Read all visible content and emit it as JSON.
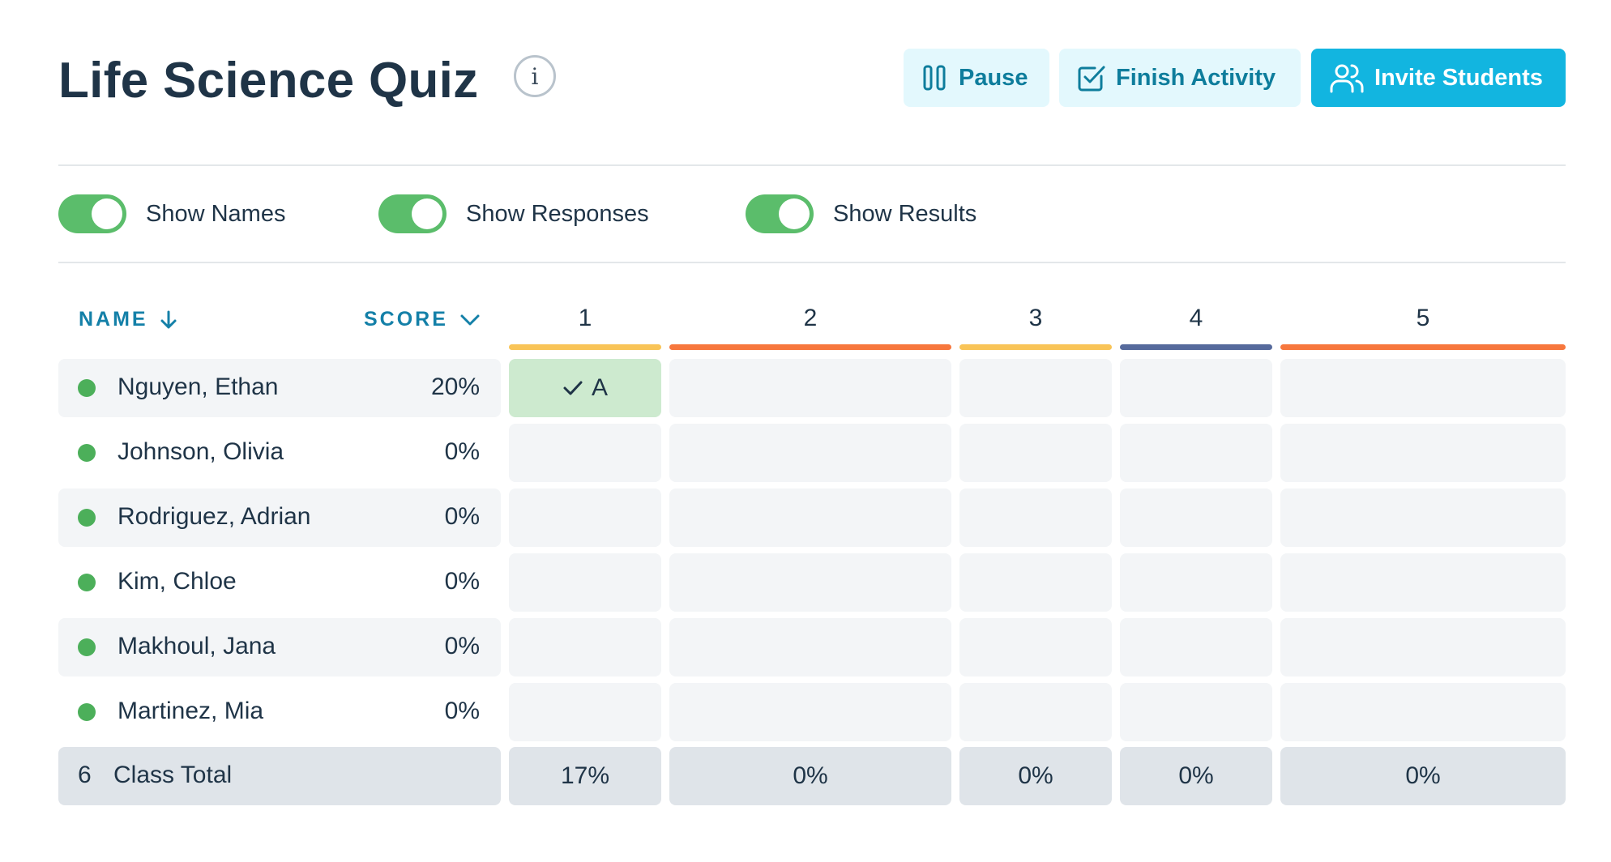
{
  "header": {
    "title": "Life Science Quiz",
    "info_icon": "info-icon",
    "pause_label": "Pause",
    "finish_label": "Finish Activity",
    "invite_label": "Invite Students"
  },
  "toggles": [
    {
      "label": "Show Names",
      "on": true
    },
    {
      "label": "Show Responses",
      "on": true
    },
    {
      "label": "Show Results",
      "on": true
    }
  ],
  "table": {
    "name_header": "NAME",
    "score_header": "SCORE",
    "questions": [
      {
        "label": "1",
        "color": "#f9c457"
      },
      {
        "label": "2",
        "color": "#f7773d"
      },
      {
        "label": "3",
        "color": "#f9c457"
      },
      {
        "label": "4",
        "color": "#566a9c"
      },
      {
        "label": "5",
        "color": "#f7773d"
      }
    ],
    "students": [
      {
        "name": "Nguyen, Ethan",
        "score": "20%",
        "status": "online",
        "responses": [
          "A",
          "",
          "",
          "",
          ""
        ],
        "correct": [
          true,
          false,
          false,
          false,
          false
        ]
      },
      {
        "name": "Johnson, Olivia",
        "score": "0%",
        "status": "online",
        "responses": [
          "",
          "",
          "",
          "",
          ""
        ],
        "correct": [
          false,
          false,
          false,
          false,
          false
        ]
      },
      {
        "name": "Rodriguez, Adrian",
        "score": "0%",
        "status": "online",
        "responses": [
          "",
          "",
          "",
          "",
          ""
        ],
        "correct": [
          false,
          false,
          false,
          false,
          false
        ]
      },
      {
        "name": "Kim, Chloe",
        "score": "0%",
        "status": "online",
        "responses": [
          "",
          "",
          "",
          "",
          ""
        ],
        "correct": [
          false,
          false,
          false,
          false,
          false
        ]
      },
      {
        "name": "Makhoul, Jana",
        "score": "0%",
        "status": "online",
        "responses": [
          "",
          "",
          "",
          "",
          ""
        ],
        "correct": [
          false,
          false,
          false,
          false,
          false
        ]
      },
      {
        "name": "Martinez, Mia",
        "score": "0%",
        "status": "online",
        "responses": [
          "",
          "",
          "",
          "",
          ""
        ],
        "correct": [
          false,
          false,
          false,
          false,
          false
        ]
      }
    ],
    "total": {
      "count": "6",
      "label": "Class Total",
      "values": [
        "17%",
        "0%",
        "0%",
        "0%",
        "0%"
      ]
    }
  },
  "colors": {
    "accent": "#12b5e0",
    "toggle_on": "#5bbd6b",
    "online": "#4caf5a",
    "correct_bg": "#cdeacf"
  }
}
